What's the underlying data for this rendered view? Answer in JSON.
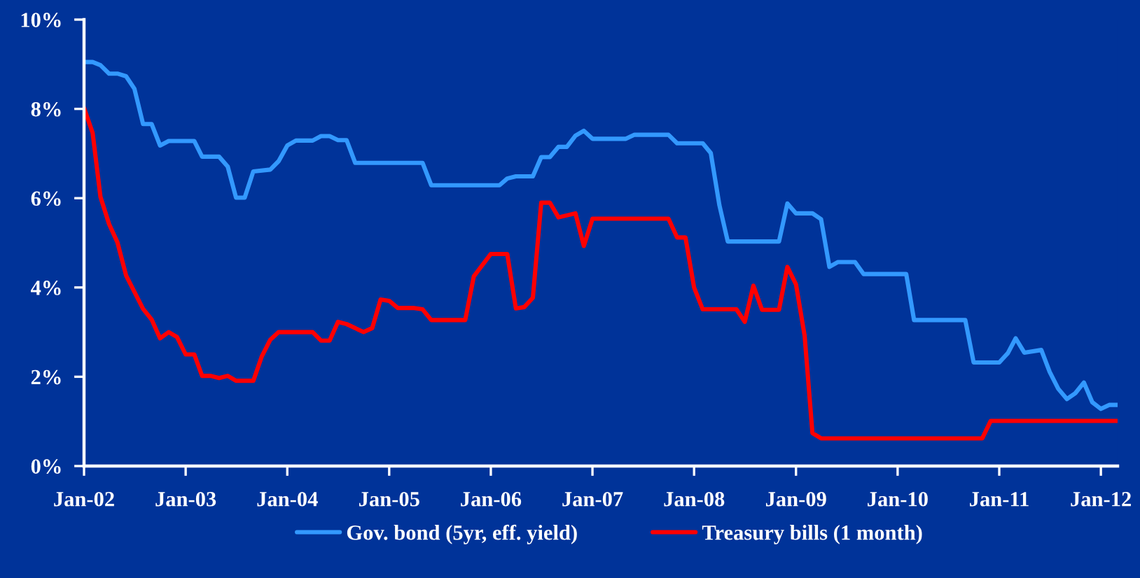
{
  "chart_data": {
    "type": "line",
    "series": [
      {
        "name": "Gov. bond (5yr, eff. yield)",
        "color": "#3399ff",
        "x": [
          "2002-01",
          "2002-02",
          "2002-03",
          "2002-04",
          "2002-05",
          "2002-06",
          "2002-07",
          "2002-08",
          "2002-09",
          "2002-10",
          "2002-11",
          "2003-02",
          "2003-03",
          "2003-05",
          "2003-06",
          "2003-07",
          "2003-08",
          "2003-09",
          "2003-11",
          "2003-12",
          "2004-01",
          "2004-02",
          "2004-04",
          "2004-05",
          "2004-06",
          "2004-07",
          "2004-08",
          "2004-09",
          "2005-05",
          "2005-06",
          "2006-02",
          "2006-03",
          "2006-04",
          "2006-06",
          "2006-07",
          "2006-08",
          "2006-09",
          "2006-10",
          "2006-11",
          "2006-12",
          "2007-01",
          "2007-05",
          "2007-06",
          "2007-10",
          "2007-11",
          "2008-02",
          "2008-03",
          "2008-04",
          "2008-05",
          "2008-11",
          "2008-12",
          "2009-01",
          "2009-03",
          "2009-04",
          "2009-05",
          "2009-06",
          "2009-08",
          "2009-09",
          "2010-02",
          "2010-03",
          "2010-09",
          "2010-10",
          "2011-01",
          "2011-02",
          "2011-03",
          "2011-04",
          "2011-06",
          "2011-07",
          "2011-08",
          "2011-09",
          "2011-10",
          "2011-11",
          "2011-12",
          "2012-01",
          "2012-02",
          "2012-03"
        ],
        "values": [
          9.05,
          9.05,
          8.98,
          8.79,
          8.79,
          8.73,
          8.45,
          7.66,
          7.66,
          7.18,
          7.28,
          7.28,
          6.93,
          6.93,
          6.71,
          6.01,
          6.01,
          6.6,
          6.64,
          6.83,
          7.18,
          7.29,
          7.29,
          7.39,
          7.39,
          7.3,
          7.3,
          6.79,
          6.79,
          6.29,
          6.29,
          6.44,
          6.49,
          6.49,
          6.92,
          6.92,
          7.15,
          7.15,
          7.4,
          7.51,
          7.33,
          7.33,
          7.42,
          7.42,
          7.23,
          7.23,
          7.01,
          5.84,
          5.03,
          5.03,
          5.88,
          5.66,
          5.66,
          5.53,
          4.46,
          4.57,
          4.57,
          4.3,
          4.3,
          3.27,
          3.27,
          2.32,
          2.32,
          2.53,
          2.86,
          2.54,
          2.6,
          2.11,
          1.73,
          1.5,
          1.63,
          1.87,
          1.43,
          1.28,
          1.37,
          1.37
        ]
      },
      {
        "name": "Treasury bills (1 month)",
        "color": "#ff0000",
        "x": [
          "2002-01",
          "2002-02",
          "2002-03",
          "2002-04",
          "2002-05",
          "2002-06",
          "2002-08",
          "2002-09",
          "2002-10",
          "2002-11",
          "2002-12",
          "2003-01",
          "2003-02",
          "2003-03",
          "2003-04",
          "2003-05",
          "2003-06",
          "2003-07",
          "2003-09",
          "2003-10",
          "2003-11",
          "2003-12",
          "2004-04",
          "2004-05",
          "2004-06",
          "2004-07",
          "2004-08",
          "2004-10",
          "2004-11",
          "2004-12",
          "2005-01",
          "2005-02",
          "2005-04",
          "2005-05",
          "2005-06",
          "2005-10",
          "2005-11",
          "2006-01",
          "2006-03",
          "2006-04",
          "2006-05",
          "2006-06",
          "2006-07",
          "2006-08",
          "2006-09",
          "2006-11",
          "2006-12",
          "2007-01",
          "2007-10",
          "2007-11",
          "2007-12",
          "2008-01",
          "2008-02",
          "2008-06",
          "2008-07",
          "2008-08",
          "2008-09",
          "2008-11",
          "2008-12",
          "2009-01",
          "2009-02",
          "2009-03",
          "2009-04",
          "2010-11",
          "2010-12",
          "2012-03"
        ],
        "values": [
          8.02,
          7.46,
          6.03,
          5.42,
          5.01,
          4.27,
          3.52,
          3.28,
          2.86,
          3.0,
          2.89,
          2.5,
          2.5,
          2.02,
          2.02,
          1.97,
          2.02,
          1.91,
          1.91,
          2.45,
          2.83,
          3.0,
          3.0,
          2.81,
          2.81,
          3.23,
          3.18,
          3.0,
          3.09,
          3.73,
          3.7,
          3.54,
          3.54,
          3.51,
          3.27,
          3.27,
          4.25,
          4.75,
          4.75,
          3.53,
          3.56,
          3.77,
          5.9,
          5.9,
          5.57,
          5.66,
          4.93,
          5.54,
          5.54,
          5.12,
          5.12,
          4.0,
          3.51,
          3.51,
          3.23,
          4.04,
          3.5,
          3.5,
          4.46,
          4.07,
          2.92,
          0.74,
          0.62,
          0.62,
          1.01,
          1.01
        ]
      }
    ],
    "xlim": [
      "2002-01",
      "2012-03"
    ],
    "xticks": [
      {
        "value": "2002-01",
        "label": "Jan-02"
      },
      {
        "value": "2003-01",
        "label": "Jan-03"
      },
      {
        "value": "2004-01",
        "label": "Jan-04"
      },
      {
        "value": "2005-01",
        "label": "Jan-05"
      },
      {
        "value": "2006-01",
        "label": "Jan-06"
      },
      {
        "value": "2007-01",
        "label": "Jan-07"
      },
      {
        "value": "2008-01",
        "label": "Jan-08"
      },
      {
        "value": "2009-01",
        "label": "Jan-09"
      },
      {
        "value": "2010-01",
        "label": "Jan-10"
      },
      {
        "value": "2011-01",
        "label": "Jan-11"
      },
      {
        "value": "2012-01",
        "label": "Jan-12"
      }
    ],
    "ylim": [
      0,
      10
    ],
    "yticks": [
      {
        "value": 0,
        "label": "0%"
      },
      {
        "value": 2,
        "label": "2%"
      },
      {
        "value": 4,
        "label": "4%"
      },
      {
        "value": 6,
        "label": "6%"
      },
      {
        "value": 8,
        "label": "8%"
      },
      {
        "value": 10,
        "label": "10%"
      }
    ],
    "legend": "bottom",
    "line_style": "solid"
  }
}
